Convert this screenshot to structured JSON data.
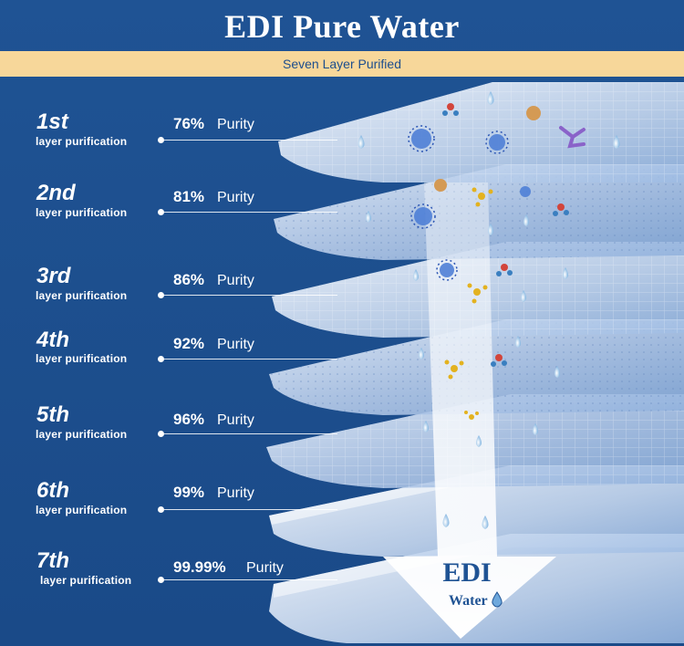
{
  "header": {
    "title": "EDI Pure Water",
    "subtitle": "Seven Layer Purified"
  },
  "layers": [
    {
      "ordinal": "1st",
      "label": "layer purification",
      "percent": "76%",
      "purity_label": "Purity"
    },
    {
      "ordinal": "2nd",
      "label": "layer purification",
      "percent": "81%",
      "purity_label": "Purity"
    },
    {
      "ordinal": "3rd",
      "label": "layer purification",
      "percent": "86%",
      "purity_label": "Purity"
    },
    {
      "ordinal": "4th",
      "label": "layer purification",
      "percent": "92%",
      "purity_label": "Purity"
    },
    {
      "ordinal": "5th",
      "label": "layer purification",
      "percent": "96%",
      "purity_label": "Purity"
    },
    {
      "ordinal": "6th",
      "label": "layer purification",
      "percent": "99%",
      "purity_label": "Purity"
    },
    {
      "ordinal": "7th",
      "label": "layer purification",
      "percent": "99.99%",
      "purity_label": "Purity"
    }
  ],
  "arrow": {
    "title": "EDI",
    "subtitle": "Water",
    "icon": "water-drop-icon"
  },
  "colors": {
    "background": "#1f5394",
    "banner": "#f7d79a",
    "banner_text": "#1d4e8d",
    "text": "#ffffff"
  }
}
